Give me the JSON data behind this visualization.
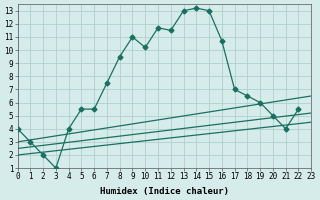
{
  "xlabel": "Humidex (Indice chaleur)",
  "background_color": "#d6ecea",
  "grid_color": "#b0d0cd",
  "line_color": "#1a7060",
  "xlim": [
    0,
    23
  ],
  "ylim": [
    1,
    13.5
  ],
  "xticks": [
    0,
    1,
    2,
    3,
    4,
    5,
    6,
    7,
    8,
    9,
    10,
    11,
    12,
    13,
    14,
    15,
    16,
    17,
    18,
    19,
    20,
    21,
    22,
    23
  ],
  "yticks": [
    1,
    2,
    3,
    4,
    5,
    6,
    7,
    8,
    9,
    10,
    11,
    12,
    13
  ],
  "curve_x": [
    0,
    1,
    2,
    3,
    4,
    5,
    6,
    7,
    8,
    9,
    10,
    11,
    12,
    13,
    14,
    15,
    16,
    17,
    18,
    19,
    20,
    21,
    22
  ],
  "curve_y": [
    4,
    3,
    2,
    1,
    4,
    5.5,
    5.5,
    7.5,
    9.5,
    11,
    10.2,
    11.7,
    11.5,
    13,
    13.2,
    13,
    10.7,
    7,
    6.5,
    6,
    5,
    4,
    5.5
  ],
  "line1_x": [
    0,
    23
  ],
  "line1_y": [
    2.0,
    4.5
  ],
  "line2_x": [
    0,
    23
  ],
  "line2_y": [
    2.5,
    5.2
  ],
  "line3_x": [
    0,
    23
  ],
  "line3_y": [
    3.0,
    6.5
  ]
}
